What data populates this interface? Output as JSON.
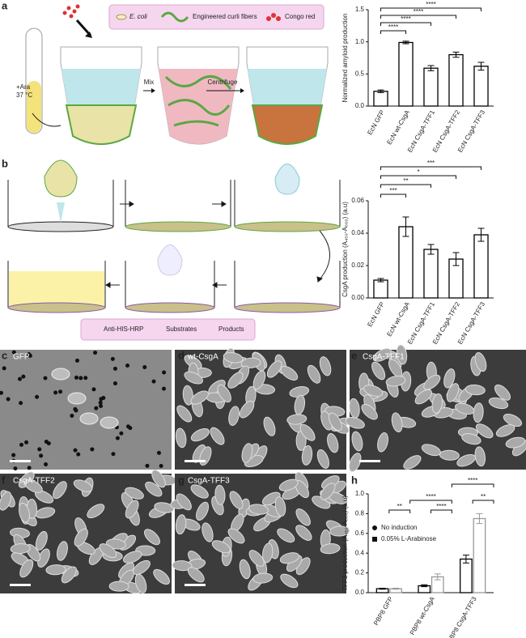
{
  "panel_labels": [
    "a",
    "b",
    "c",
    "d",
    "e",
    "f",
    "g",
    "h"
  ],
  "diagram_a": {
    "legend": [
      "E. coli",
      "Engineered curli fibers",
      "Congo red"
    ],
    "tube_label": [
      "+Ara",
      "37 °C"
    ],
    "steps": [
      "Mix",
      "Centrifuge"
    ]
  },
  "diagram_b": {
    "legend": [
      "Anti-HIS-HRP",
      "Substrates",
      "Products"
    ]
  },
  "micrographs": [
    "GFP",
    "wt-CsgA",
    "CsgA-TFF1",
    "CsgA-TFF2",
    "CsgA-TFF3"
  ],
  "chart_data": [
    {
      "type": "bar",
      "y_label": "Normalized amyloid production",
      "categories": [
        "EcN GFP",
        "EcN wt-CsgA",
        "EcN CsgA-TFF1",
        "EcN CsgA-TFF2",
        "EcN CsgA-TFF3"
      ],
      "values": [
        0.23,
        0.99,
        0.59,
        0.8,
        0.62
      ],
      "errors": [
        0.02,
        0.02,
        0.04,
        0.04,
        0.06
      ],
      "color": "#ffffff",
      "edge_color": "#000000",
      "ylim": [
        0,
        1.5
      ],
      "yticks": [
        {
          "value": 0,
          "label": "0.0"
        },
        0.5,
        {
          "value": 1,
          "label": "1.0"
        },
        1.5
      ],
      "annotations": [
        "****",
        "****",
        "****",
        "****"
      ]
    },
    {
      "type": "bar",
      "y_label": "CsgA production (A₄₅₀-A₅₆₀) (a.u)",
      "categories": [
        "EcN GFP",
        "EcN wt-CsgA",
        "EcN CsgA-TFF1",
        "EcN CsgA-TFF2",
        "EcN CsgA-TFF3"
      ],
      "values": [
        0.011,
        0.044,
        0.03,
        0.024,
        0.039
      ],
      "errors": [
        0.001,
        0.006,
        0.003,
        0.004,
        0.004
      ],
      "color": "#ffffff",
      "edge_color": "#000000",
      "ylim": [
        0,
        0.06
      ],
      "yticks": [
        {
          "value": 0,
          "label": "0.00"
        },
        0.02,
        0.04,
        0.06
      ],
      "annotations": [
        "***",
        "**",
        "*",
        "***"
      ]
    },
    {
      "type": "grouped-bar",
      "y_label": "TFF3 production (A₄₅₀-A₅₆₀) (a.u)",
      "categories": [
        "PBP8 GFP",
        "PBP8 wt-CsgA",
        "PBP8 CsgA-TFF3"
      ],
      "series": [
        {
          "name": "No induction",
          "color": "#000000",
          "marker": "circle",
          "values": [
            0.04,
            0.07,
            0.34
          ],
          "errors": [
            0.005,
            0.01,
            0.04
          ]
        },
        {
          "name": "0.05% L-Arabinose",
          "color": "#999999",
          "marker": "square",
          "values": [
            0.04,
            0.16,
            0.75
          ],
          "errors": [
            0.005,
            0.03,
            0.05
          ]
        }
      ],
      "ylim": [
        0,
        1.0
      ],
      "yticks": [
        {
          "value": 0,
          "label": "0.0"
        },
        0.2,
        0.4,
        0.6,
        0.8,
        {
          "value": 1,
          "label": "1.0"
        }
      ],
      "legend": "upper left",
      "annotations": [
        "**",
        "****",
        "****",
        "**",
        "****"
      ]
    }
  ]
}
